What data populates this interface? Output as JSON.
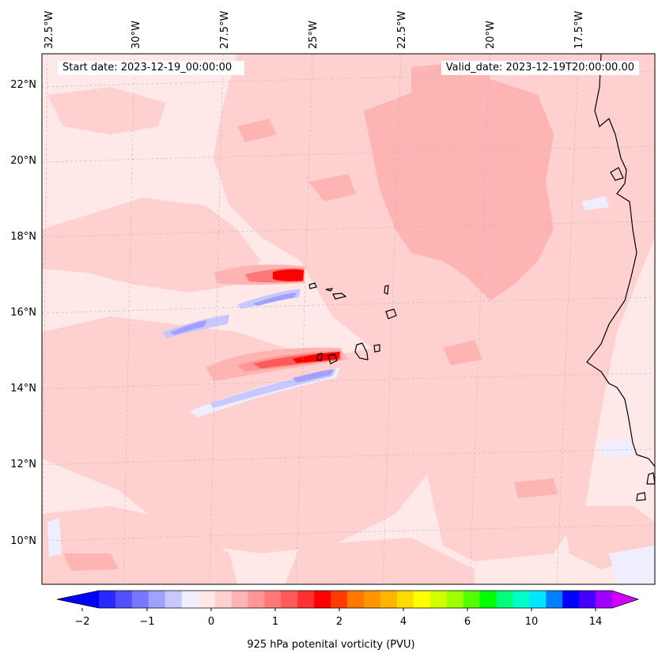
{
  "header": {
    "start_date": "Start date: 2023-12-19_00:00:00",
    "valid_date": "Valid_date: 2023-12-19T20:00:00.00"
  },
  "map": {
    "variable": "925 hPa potential vorticity",
    "lon_labels": [
      "32.5°W",
      "30°W",
      "27.5°W",
      "25°W",
      "22.5°W",
      "20°W",
      "17.5°W"
    ],
    "lat_labels": [
      "22°N",
      "20°N",
      "18°N",
      "16°N",
      "14°N",
      "12°N",
      "10°N"
    ],
    "extent": {
      "lon_min": -33.0,
      "lon_max": -15.5,
      "lat_min": 8.9,
      "lat_max": 22.8
    },
    "features": [
      "Cape Verde islands",
      "West African coastline"
    ]
  },
  "colorbar": {
    "title": "925 hPa potenital vorticity (PVU)",
    "tick_labels": [
      "−2",
      "−1",
      "0",
      "1",
      "2",
      "4",
      "6",
      "10",
      "14"
    ],
    "colors": [
      "#0000ff",
      "#2828ff",
      "#5050ff",
      "#7878ff",
      "#a0a0ff",
      "#c8c8ff",
      "#eeeeff",
      "#ffe8e8",
      "#ffd0d0",
      "#ffb4b4",
      "#ff9696",
      "#ff7878",
      "#ff5a5a",
      "#ff3030",
      "#ff0000",
      "#ff3c00",
      "#ff7800",
      "#ff9600",
      "#ffb400",
      "#ffdc00",
      "#ffff00",
      "#d2ff00",
      "#a0ff00",
      "#50ff00",
      "#00ff00",
      "#00ff78",
      "#00ffc8",
      "#00e6ff",
      "#0080ff",
      "#0000ff",
      "#4600ff",
      "#a000ff",
      "#d200ff"
    ]
  },
  "colors": {
    "background_pale": "#ffe8e8",
    "pink_light": "#ffd0d0",
    "pink_mid": "#ffb4b4",
    "pv_max": "#ff0000",
    "pv_neg": "#a0a0ff"
  }
}
